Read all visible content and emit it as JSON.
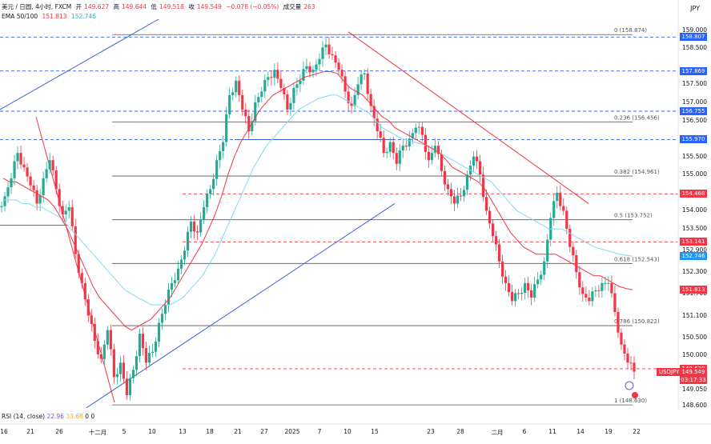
{
  "header": {
    "title": "美元 / 日圆, 4小时, FXCM",
    "open_label": "开",
    "open": "149.627",
    "high_label": "高",
    "high": "149.644",
    "low_label": "低",
    "low": "149.518",
    "close_label": "收",
    "close": "149.549",
    "change": "−0.078 (−0.05%)",
    "volume_label": "成交量",
    "volume": "263",
    "ema_label": "EMA 50/100",
    "ema50": "151.813",
    "ema100": "152.746"
  },
  "currency": "JPY",
  "colors": {
    "up": "#22ab94",
    "down": "#f23645",
    "ema50": "#f23645",
    "ema100": "#7fd9f0",
    "trend_blue": "#3c62d6",
    "trend_red": "#f23645",
    "fib_line": "#555555",
    "hline_blue": "#2962ff",
    "hline_red": "#f23645"
  },
  "chart_data": {
    "type": "candlestick",
    "title": "美元 / 日圆, 4小时, FXCM",
    "y_axis": {
      "ticks": [
        159.0,
        158.5,
        157.5,
        157.0,
        156.5,
        155.5,
        155.0,
        154.0,
        153.5,
        152.9,
        152.3,
        151.7,
        151.1,
        150.5,
        150.0,
        149.05,
        148.6
      ],
      "tick_labels": [
        "159.000",
        "158.500",
        "157.500",
        "157.000",
        "156.500",
        "155.500",
        "155.000",
        "154.000",
        "153.500",
        "152.900",
        "152.300",
        "151.700",
        "151.100",
        "150.500",
        "150.000",
        "149.050",
        "148.600"
      ],
      "ylim": [
        148.5,
        159.3
      ]
    },
    "x_axis": {
      "ticks": [
        "16",
        "21",
        "26",
        "十二月",
        "5",
        "10",
        "13",
        "18",
        "21",
        "27",
        "2025",
        "7",
        "10",
        "15",
        "23",
        "28",
        "二月",
        "6",
        "11",
        "14",
        "19",
        "22"
      ]
    },
    "price_lines": [
      {
        "value": 158.807,
        "label": "158.807",
        "style": "dashed",
        "color": "#2962ff"
      },
      {
        "value": 157.869,
        "label": "157.869",
        "style": "dashed",
        "color": "#2962ff"
      },
      {
        "value": 156.755,
        "label": "156.755",
        "style": "dashed",
        "color": "#2962ff"
      },
      {
        "value": 155.97,
        "label": "155.970",
        "style": "dashed",
        "color": "#2962ff"
      },
      {
        "value": 154.468,
        "label": "154.468",
        "style": "dashed",
        "color": "#f23645"
      },
      {
        "value": 153.141,
        "label": "153.141",
        "style": "dashed",
        "color": "#f23645"
      },
      {
        "value": 149.63,
        "label": "149.630",
        "style": "dashed",
        "color": "#f23645"
      }
    ],
    "fibonacci": [
      {
        "ratio": "0",
        "price": "158.874",
        "value": 158.874
      },
      {
        "ratio": "0.236",
        "price": "156.456",
        "value": 156.456
      },
      {
        "ratio": "0.382",
        "price": "154.961",
        "value": 154.961
      },
      {
        "ratio": "0.5",
        "price": "153.752",
        "value": 153.752
      },
      {
        "ratio": "0.618",
        "price": "152.543",
        "value": 152.543
      },
      {
        "ratio": "0.786",
        "price": "150.822",
        "value": 150.822
      },
      {
        "ratio": "1",
        "price": "148.630",
        "value": 148.63
      }
    ],
    "axis_tags": [
      {
        "value": 151.813,
        "label": "151.813",
        "color": "#f23645"
      },
      {
        "value": 152.746,
        "label": "152.746",
        "color": "#2196f3"
      },
      {
        "value": 149.549,
        "label": "149.549",
        "color": "#f23645"
      }
    ],
    "last_price": 149.549,
    "symbol_tag": "USDJPY",
    "countdown": "03:17:33",
    "close_series": [
      154.4,
      154.9,
      155.6,
      155.2,
      154.7,
      154.2,
      154.9,
      155.4,
      154.6,
      153.9,
      154.1,
      152.8,
      152.0,
      151.1,
      150.4,
      149.9,
      150.7,
      149.4,
      149.8,
      148.9,
      149.6,
      150.6,
      149.8,
      150.1,
      150.9,
      151.4,
      152.0,
      152.4,
      152.9,
      153.7,
      153.4,
      154.1,
      154.6,
      155.4,
      155.9,
      157.2,
      157.6,
      156.8,
      156.2,
      157.0,
      157.3,
      157.7,
      157.9,
      157.4,
      156.8,
      157.4,
      157.6,
      158.0,
      157.9,
      158.2,
      158.6,
      158.3,
      157.9,
      157.3,
      156.9,
      157.5,
      157.8,
      156.9,
      156.2,
      155.6,
      155.9,
      155.3,
      155.8,
      156.0,
      156.3,
      156.1,
      155.4,
      155.8,
      155.1,
      154.6,
      154.2,
      154.4,
      155.0,
      155.5,
      155.0,
      154.0,
      153.3,
      152.6,
      152.0,
      151.5,
      151.7,
      152.0,
      151.6,
      152.1,
      152.6,
      153.8,
      154.5,
      154.0,
      153.0,
      152.3,
      151.7,
      151.5,
      151.8,
      152.0,
      152.0,
      151.2,
      150.3,
      149.8,
      149.55
    ],
    "ema50_series": [
      154.9,
      154.8,
      154.8,
      154.7,
      154.6,
      154.5,
      154.4,
      154.3,
      154.1,
      153.8,
      153.5,
      153.1,
      152.7,
      152.3,
      151.9,
      151.6,
      151.4,
      151.2,
      151.0,
      150.8,
      150.7,
      150.8,
      150.9,
      151.0,
      151.2,
      151.4,
      151.6,
      151.9,
      152.2,
      152.5,
      152.8,
      153.1,
      153.5,
      153.9,
      154.4,
      155.0,
      155.5,
      155.9,
      156.2,
      156.5,
      156.8,
      157.0,
      157.2,
      157.3,
      157.4,
      157.5,
      157.6,
      157.7,
      157.75,
      157.8,
      157.85,
      157.85,
      157.8,
      157.6,
      157.4,
      157.3,
      157.2,
      157.0,
      156.8,
      156.6,
      156.5,
      156.3,
      156.2,
      156.1,
      156.0,
      155.9,
      155.8,
      155.7,
      155.6,
      155.4,
      155.2,
      155.1,
      155.0,
      154.9,
      154.8,
      154.6,
      154.3,
      154.0,
      153.7,
      153.4,
      153.2,
      153.0,
      152.9,
      152.8,
      152.8,
      152.8,
      152.8,
      152.7,
      152.6,
      152.5,
      152.4,
      152.3,
      152.2,
      152.2,
      152.1,
      152.0,
      151.9,
      151.85,
      151.813
    ],
    "ema100_series": [
      154.3,
      154.3,
      154.3,
      154.2,
      154.2,
      154.1,
      154.1,
      154.0,
      153.9,
      153.8,
      153.6,
      153.4,
      153.2,
      153.0,
      152.8,
      152.6,
      152.4,
      152.2,
      152.0,
      151.8,
      151.7,
      151.6,
      151.5,
      151.4,
      151.4,
      151.4,
      151.4,
      151.5,
      151.6,
      151.8,
      152.0,
      152.2,
      152.5,
      152.8,
      153.2,
      153.6,
      154.0,
      154.4,
      154.8,
      155.2,
      155.5,
      155.8,
      156.0,
      156.2,
      156.4,
      156.6,
      156.8,
      156.9,
      157.0,
      157.1,
      157.15,
      157.2,
      157.2,
      157.1,
      157.0,
      156.9,
      156.8,
      156.7,
      156.5,
      156.3,
      156.2,
      156.1,
      156.0,
      155.95,
      155.9,
      155.85,
      155.8,
      155.7,
      155.6,
      155.5,
      155.4,
      155.3,
      155.2,
      155.1,
      155.0,
      154.9,
      154.8,
      154.6,
      154.4,
      154.2,
      154.0,
      153.9,
      153.8,
      153.7,
      153.6,
      153.5,
      153.5,
      153.5,
      153.4,
      153.3,
      153.2,
      153.1,
      153.0,
      152.95,
      152.9,
      152.85,
      152.8,
      152.77,
      152.746
    ]
  },
  "rsi": {
    "label": "RSI (14, close)",
    "value1": "22.96",
    "value2": "33.68",
    "value3": "0",
    "value4": "0"
  },
  "fib_level1_label": "1 (148.630)"
}
